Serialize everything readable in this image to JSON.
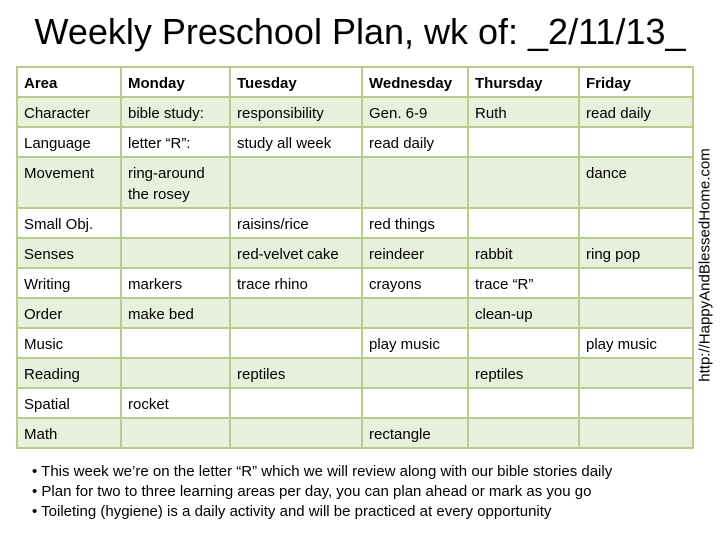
{
  "title": "Weekly Preschool Plan, wk of: _2/11/13_",
  "url": "http://HappyAndBlessedHome.com",
  "headers": [
    "Area",
    "Monday",
    "Tuesday",
    "Wednesday",
    "Thursday",
    "Friday"
  ],
  "rows": [
    [
      "Character",
      "bible study:",
      "responsibility",
      " Gen. 6-9",
      "Ruth",
      "read daily"
    ],
    [
      "Language",
      "letter “R”:",
      "study all week",
      "read daily",
      "",
      ""
    ],
    [
      "Movement",
      "ring-around the rosey",
      "",
      "",
      "",
      "dance"
    ],
    [
      "Small Obj.",
      "",
      "raisins/rice",
      "red things",
      "",
      ""
    ],
    [
      "Senses",
      "",
      "red-velvet cake",
      "reindeer",
      "rabbit",
      "ring pop"
    ],
    [
      "Writing",
      "markers",
      "trace rhino",
      "crayons",
      "trace “R”",
      ""
    ],
    [
      "Order",
      "make bed",
      "",
      "",
      "clean-up",
      ""
    ],
    [
      "Music",
      "",
      "",
      "play music",
      "",
      "play music"
    ],
    [
      "Reading",
      "",
      "reptiles",
      "",
      "reptiles",
      ""
    ],
    [
      "Spatial",
      "rocket",
      "",
      "",
      "",
      ""
    ],
    [
      "Math",
      "",
      "",
      "rectangle",
      "",
      ""
    ]
  ],
  "notes": [
    "This week we’re on the letter “R” which we will review along with our bible stories daily",
    "Plan for two to three learning areas per day, you can plan ahead or mark as you go",
    "Toileting (hygiene) is a daily activity and will be practiced at every opportunity"
  ],
  "colors": {
    "band": "#e8efdc",
    "border": "#b9cc8e"
  }
}
